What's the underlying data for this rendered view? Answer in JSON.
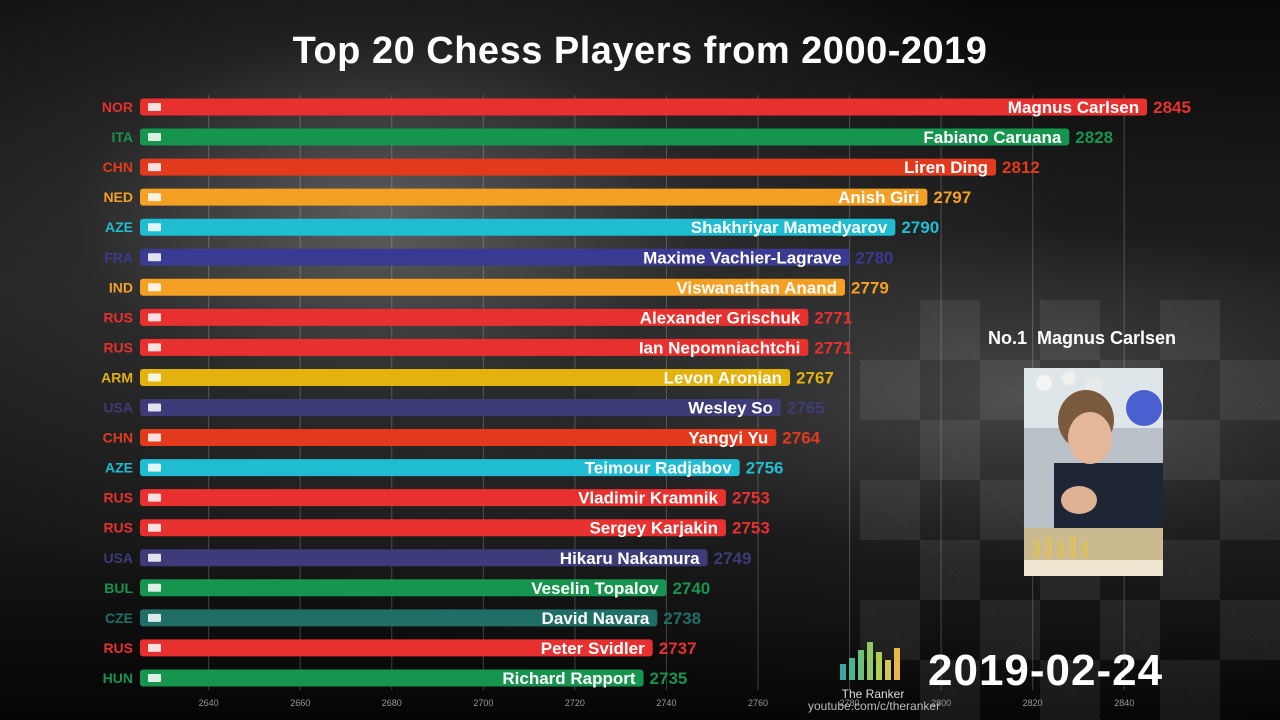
{
  "title": "Top 20 Chess Players from 2000-2019",
  "chart_data": {
    "type": "bar",
    "orientation": "horizontal",
    "xlim": [
      2625,
      2850
    ],
    "xticks": [
      2640,
      2660,
      2680,
      2700,
      2720,
      2740,
      2760,
      2780,
      2800,
      2820,
      2840
    ],
    "grid": true,
    "bars": [
      {
        "country": "NOR",
        "name": "Magnus Carlsen",
        "value": 2845,
        "color": "#e8312f"
      },
      {
        "country": "ITA",
        "name": "Fabiano Caruana",
        "value": 2828,
        "color": "#16954f"
      },
      {
        "country": "CHN",
        "name": "Liren Ding",
        "value": 2812,
        "color": "#e33a1e"
      },
      {
        "country": "NED",
        "name": "Anish Giri",
        "value": 2797,
        "color": "#f4a024"
      },
      {
        "country": "AZE",
        "name": "Shakhriyar Mamedyarov",
        "value": 2790,
        "color": "#20bcd2"
      },
      {
        "country": "FRA",
        "name": "Maxime Vachier-Lagrave",
        "value": 2780,
        "color": "#3a3a92"
      },
      {
        "country": "IND",
        "name": "Viswanathan Anand",
        "value": 2779,
        "color": "#f4a024"
      },
      {
        "country": "RUS",
        "name": "Alexander Grischuk",
        "value": 2771,
        "color": "#e8312f"
      },
      {
        "country": "RUS",
        "name": "Ian Nepomniachtchi",
        "value": 2771,
        "color": "#e8312f"
      },
      {
        "country": "ARM",
        "name": "Levon Aronian",
        "value": 2767,
        "color": "#e4b20c"
      },
      {
        "country": "USA",
        "name": "Wesley So",
        "value": 2765,
        "color": "#3e3c78"
      },
      {
        "country": "CHN",
        "name": "Yangyi Yu",
        "value": 2764,
        "color": "#e33a1e"
      },
      {
        "country": "AZE",
        "name": "Teimour Radjabov",
        "value": 2756,
        "color": "#20bcd2"
      },
      {
        "country": "RUS",
        "name": "Vladimir Kramnik",
        "value": 2753,
        "color": "#e8312f"
      },
      {
        "country": "RUS",
        "name": "Sergey Karjakin",
        "value": 2753,
        "color": "#e8312f"
      },
      {
        "country": "USA",
        "name": "Hikaru Nakamura",
        "value": 2749,
        "color": "#3e3c78"
      },
      {
        "country": "BUL",
        "name": "Veselin Topalov",
        "value": 2740,
        "color": "#16954f"
      },
      {
        "country": "CZE",
        "name": "David Navara",
        "value": 2738,
        "color": "#1f6f66"
      },
      {
        "country": "RUS",
        "name": "Peter Svidler",
        "value": 2737,
        "color": "#e8312f"
      },
      {
        "country": "HUN",
        "name": "Richard Rapport",
        "value": 2735,
        "color": "#16954f"
      }
    ]
  },
  "leader": {
    "label": "No.1  Magnus Carlsen"
  },
  "date": "2019-02-24",
  "brand": {
    "name": "The Ranker",
    "credit": "youtube.com/c/theranker"
  }
}
